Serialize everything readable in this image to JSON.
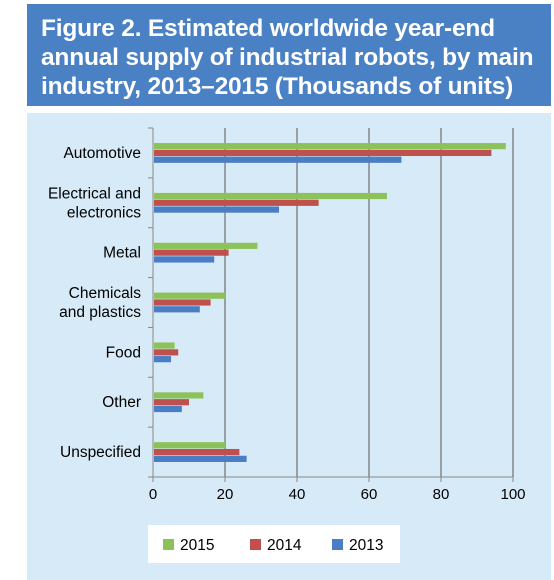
{
  "title": "Figure 2. Estimated worldwide year-end annual supply of industrial robots, by main industry, 2013–2015 (Thousands of units)",
  "chart_data": {
    "type": "bar",
    "orientation": "horizontal",
    "title": "Figure 2. Estimated worldwide year-end annual supply of industrial robots, by main industry, 2013–2015 (Thousands of units)",
    "xlabel": "",
    "ylabel": "",
    "categories": [
      [
        "Automotive"
      ],
      [
        "Electrical and",
        "electronics"
      ],
      [
        "Metal"
      ],
      [
        "Chemicals",
        "and plastics"
      ],
      [
        "Food"
      ],
      [
        "Other"
      ],
      [
        "Unspecified"
      ]
    ],
    "series": [
      {
        "name": "2015",
        "color": "#8dc25a",
        "values": [
          98,
          65,
          29,
          20,
          6,
          14,
          20
        ]
      },
      {
        "name": "2014",
        "color": "#c0504d",
        "values": [
          94,
          46,
          21,
          16,
          7,
          10,
          24
        ]
      },
      {
        "name": "2013",
        "color": "#4a7dc4",
        "values": [
          69,
          35,
          17,
          13,
          5,
          8,
          26
        ]
      }
    ],
    "xlim": [
      0,
      100
    ],
    "xticks": [
      "0",
      "20",
      "40",
      "60",
      "80",
      "100"
    ],
    "grid": "vertical",
    "legend_position": "bottom",
    "axis_color": "#888888",
    "grid_color": "#555555"
  }
}
